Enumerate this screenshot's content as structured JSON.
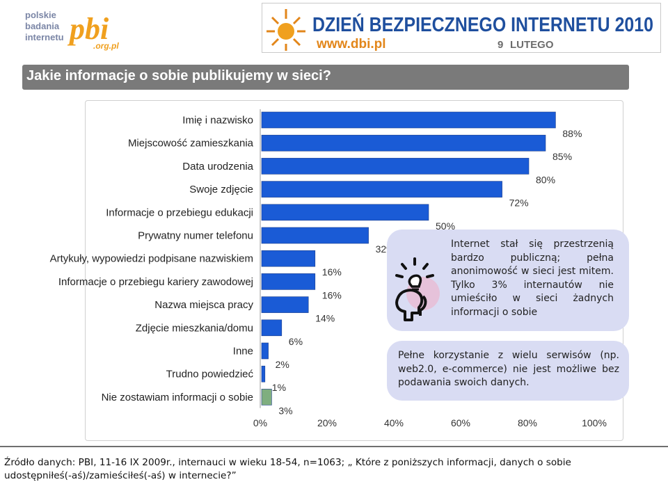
{
  "logo": {
    "lines": [
      "polskie",
      "badania",
      "internetu"
    ],
    "mark": "pbi",
    "domain": ".org.pl"
  },
  "banner": {
    "title": "DZIEŃ BEZPIECZNEGO INTERNETU 2010",
    "url": "www.dbi.pl",
    "date_day": "9",
    "date_month": "LUTEGO"
  },
  "page": {
    "title": "Jakie informacje o sobie publikujemy w sieci?"
  },
  "chart_data": {
    "type": "bar",
    "orientation": "horizontal",
    "title": "",
    "xlabel": "",
    "ylabel": "",
    "xlim": [
      0,
      100
    ],
    "x_tick_labels": [
      "0%",
      "20%",
      "40%",
      "60%",
      "80%",
      "100%"
    ],
    "grid": false,
    "categories": [
      "Imię i nazwisko",
      "Miejscowość zamieszkania",
      "Data urodzenia",
      "Swoje zdjęcie",
      "Informacje o przebiegu edukacji",
      "Prywatny numer telefonu",
      "Artykuły, wypowiedzi podpisane nazwiskiem",
      "Informacje o przebiegu kariery zawodowej",
      "Nazwa miejsca pracy",
      "Zdjęcie mieszkania/domu",
      "Inne",
      "Trudno powiedzieć",
      "Nie zostawiam informacji o sobie"
    ],
    "values": [
      88,
      85,
      80,
      72,
      50,
      32,
      16,
      16,
      14,
      6,
      2,
      1,
      3
    ],
    "value_labels": [
      "88%",
      "85%",
      "80%",
      "72%",
      "50%",
      "32%",
      "16%",
      "16%",
      "14%",
      "6%",
      "2%",
      "1%",
      "3%"
    ],
    "bar_colors": [
      "#1a5bd6",
      "#1a5bd6",
      "#1a5bd6",
      "#1a5bd6",
      "#1a5bd6",
      "#1a5bd6",
      "#1a5bd6",
      "#1a5bd6",
      "#1a5bd6",
      "#1a5bd6",
      "#1a5bd6",
      "#1a5bd6",
      "#7fae7f"
    ]
  },
  "callouts": {
    "first": "Internet stał się przestrzenią bardzo publiczną; pełna anonimowość w sieci jest mitem. Tylko 3% internautów nie umieściło w sieci żadnych informacji o sobie",
    "second": "Pełne korzystanie z wielu serwisów (np. web2.0, e-commerce) nie jest możliwe bez podawania swoich danych."
  },
  "footer": {
    "source": "Źródło danych: PBI, 11-16 IX 2009r., internauci w wieku 18-54, n=1063; „ Które z poniższych informacji, danych o sobie udostępniłeś(-aś)/zamieściłeś(-aś) w internecie?”"
  },
  "colors": {
    "bar": "#1a5bd6",
    "bar_highlight": "#7fae7f",
    "title_bar": "#7a7a7a",
    "callout": "#d9dcf3",
    "logo_orange": "#f0a01e",
    "banner_blue": "#1f4f9e"
  },
  "icons": [
    "lightbulb-icon",
    "heads-icon"
  ]
}
